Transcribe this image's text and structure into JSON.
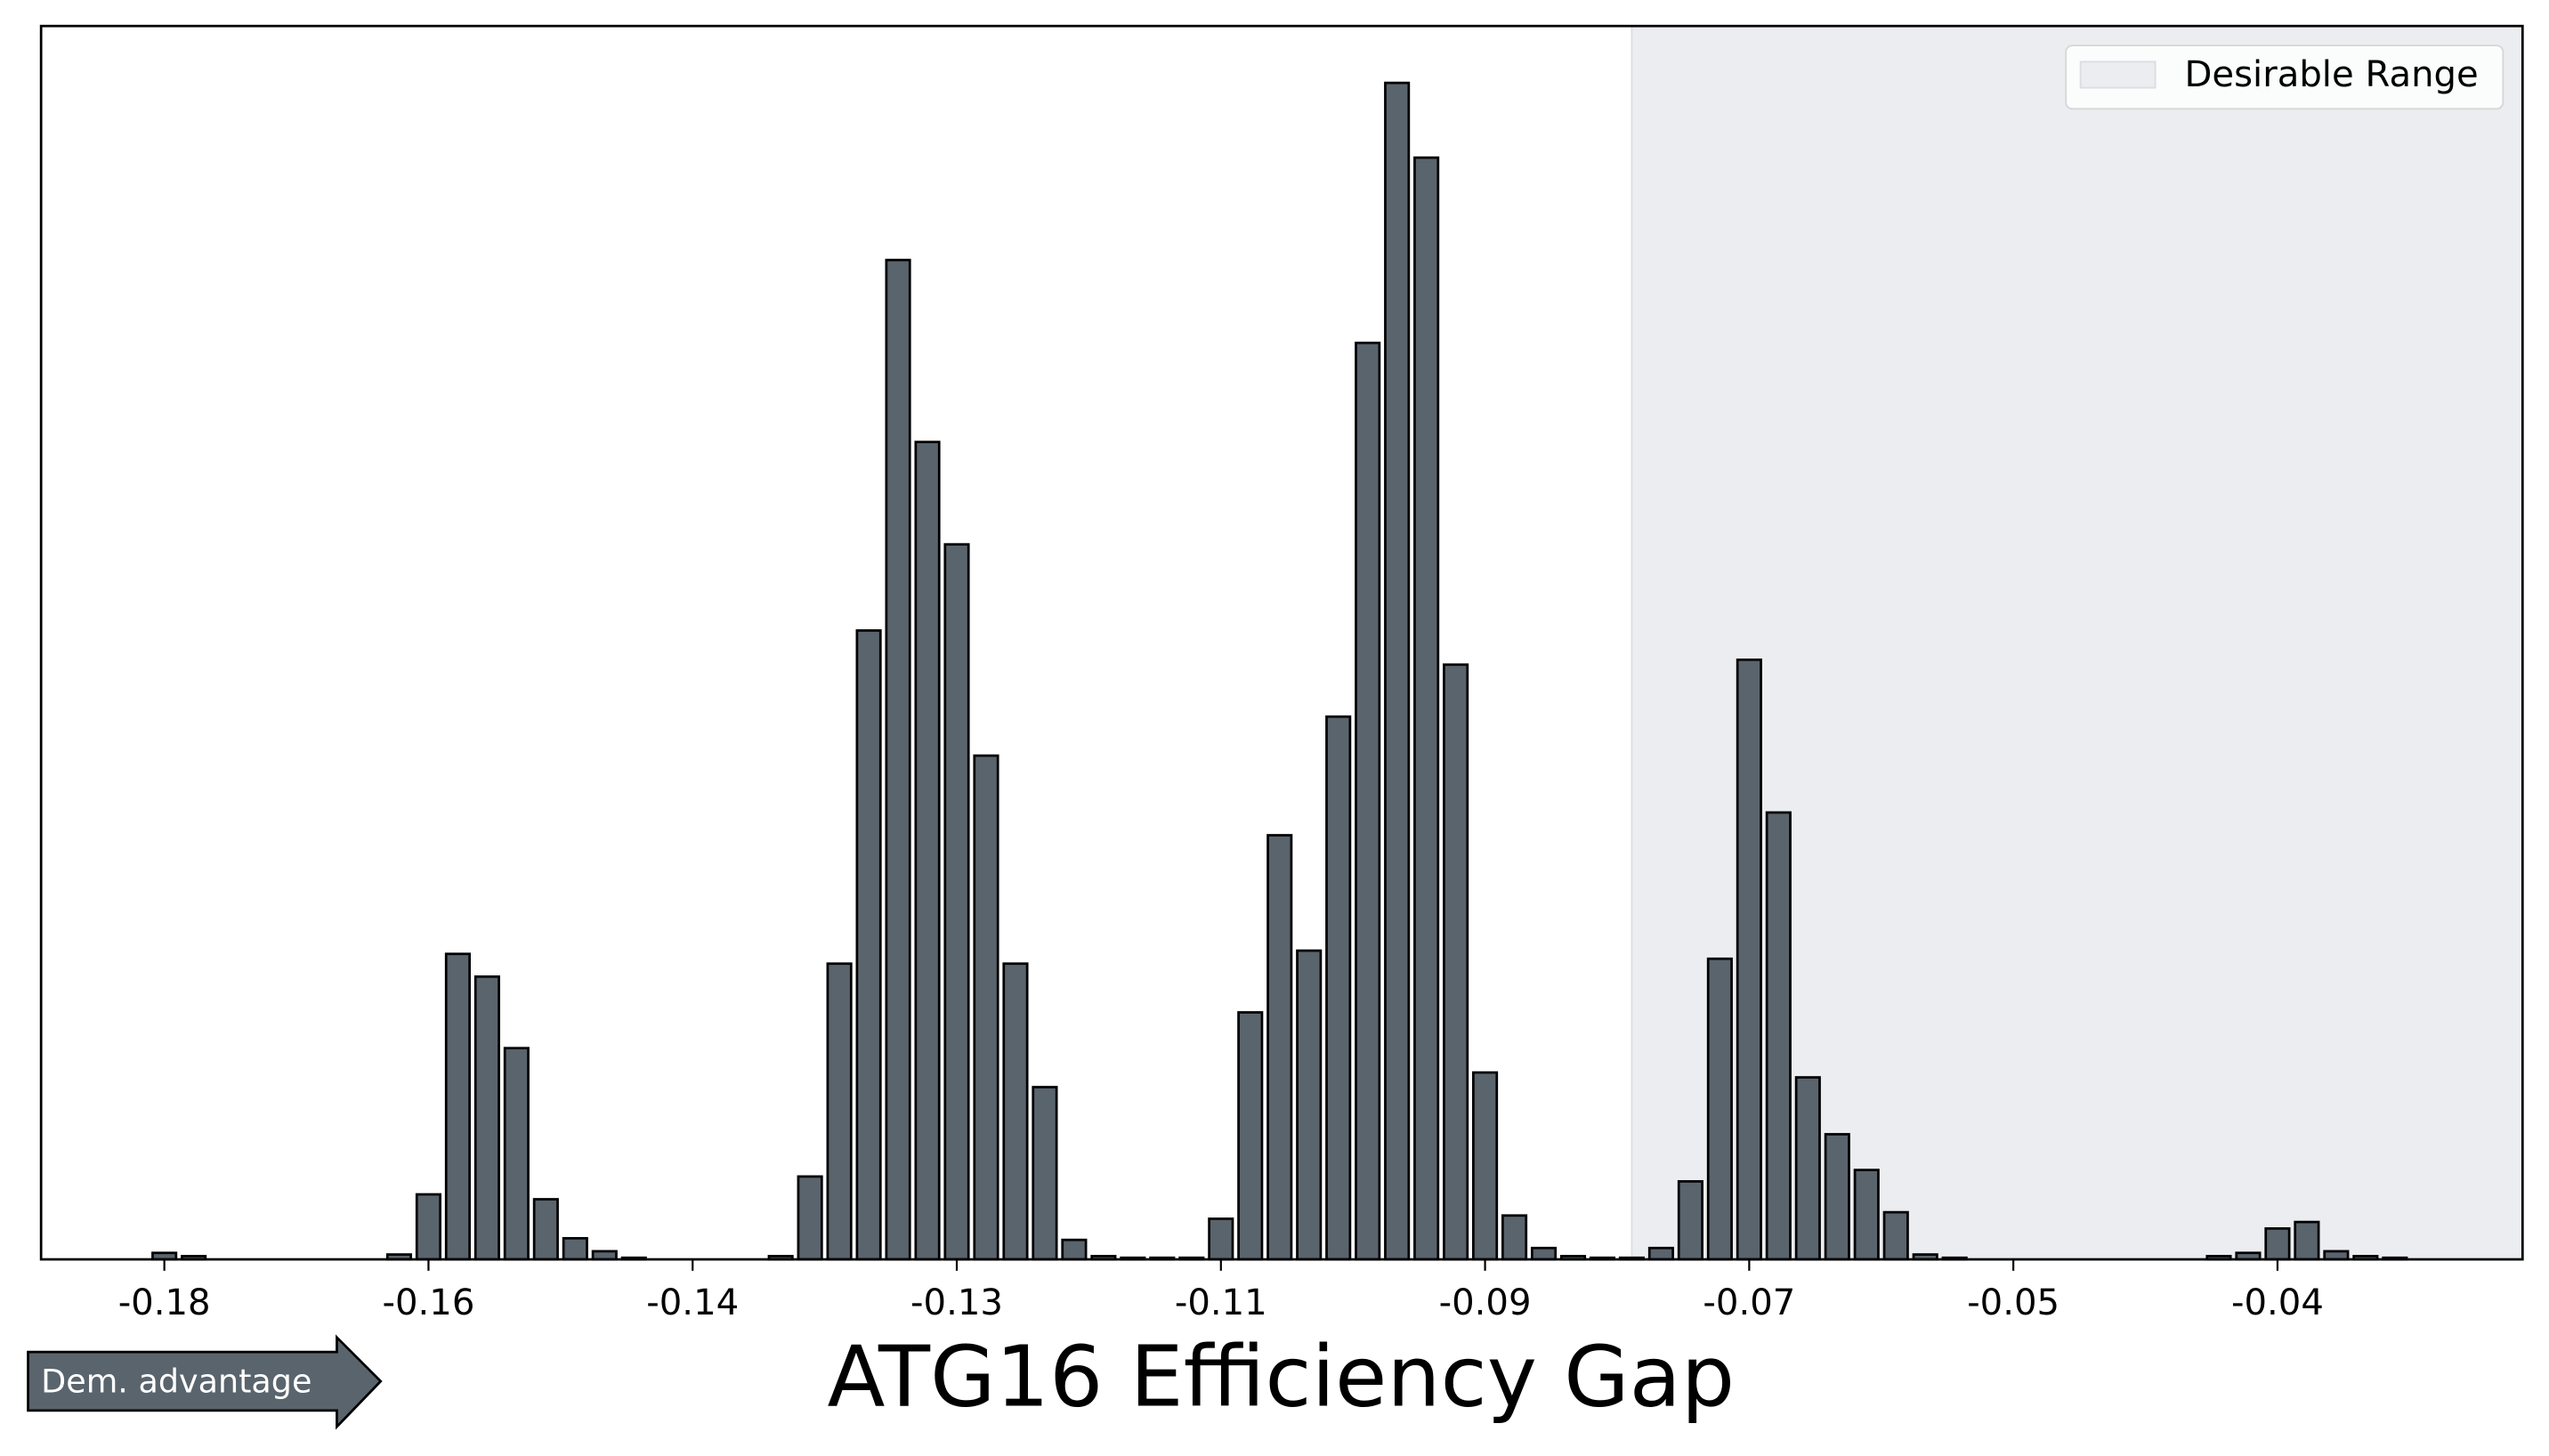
{
  "chart_data": {
    "type": "histogram",
    "xlabel": "ATG16 Efficiency Gap",
    "annotation": "Dem. advantage",
    "bins": [
      -0.181,
      -0.179,
      -0.177,
      -0.175,
      -0.173,
      -0.171,
      -0.169,
      -0.167,
      -0.165,
      -0.163,
      -0.161,
      -0.159,
      -0.157,
      -0.155,
      -0.153,
      -0.151,
      -0.149,
      -0.147,
      -0.145,
      -0.143,
      -0.141,
      -0.139,
      -0.137,
      -0.135,
      -0.133,
      -0.131,
      -0.129,
      -0.127,
      -0.125,
      -0.123,
      -0.121,
      -0.119,
      -0.117,
      -0.115,
      -0.113,
      -0.111,
      -0.109,
      -0.107,
      -0.105,
      -0.103,
      -0.101,
      -0.099,
      -0.097,
      -0.095,
      -0.093,
      -0.091,
      -0.089,
      -0.087,
      -0.085,
      -0.083,
      -0.081,
      -0.079,
      -0.077,
      -0.075,
      -0.073,
      -0.071,
      -0.069,
      -0.067,
      -0.065,
      -0.063,
      -0.061,
      -0.059,
      -0.057,
      -0.055,
      -0.053,
      -0.051,
      -0.049,
      -0.047,
      -0.045,
      -0.043,
      -0.041,
      -0.039,
      -0.037,
      -0.035,
      -0.033,
      -0.031,
      -0.029,
      -0.027
    ],
    "values": [
      4,
      2,
      0,
      0,
      0,
      0,
      0,
      0,
      3,
      40,
      188,
      174,
      130,
      37,
      13,
      5,
      1,
      0,
      0,
      0,
      0,
      2,
      51,
      182,
      387,
      615,
      503,
      440,
      310,
      182,
      106,
      12,
      2,
      1,
      1,
      1,
      25,
      152,
      261,
      190,
      334,
      564,
      724,
      678,
      366,
      115,
      27,
      7,
      2,
      1,
      1,
      7,
      48,
      185,
      369,
      275,
      112,
      77,
      55,
      29,
      3,
      1,
      0,
      0,
      0,
      0,
      0,
      0,
      0,
      0,
      2,
      4,
      19,
      23,
      5,
      2,
      1
    ],
    "color": "#5a646d",
    "shade": {
      "label": "Desirable Range",
      "start": -0.08,
      "color": "#ecedf0"
    },
    "legend": "upper right",
    "xlim": [
      -0.1884,
      -0.0193
    ],
    "ylim": [
      0,
      759
    ],
    "xticks": [
      -0.18,
      {
        "value": -0.162,
        "label": "-0.16"
      },
      {
        "value": -0.144,
        "label": "-0.14"
      },
      {
        "value": -0.126,
        "label": "-0.13"
      },
      {
        "value": -0.108,
        "label": "-0.11"
      },
      -0.09,
      {
        "value": -0.072,
        "label": "-0.07"
      },
      {
        "value": -0.054,
        "label": "-0.05"
      },
      {
        "value": -0.036,
        "label": "-0.04"
      }
    ]
  }
}
